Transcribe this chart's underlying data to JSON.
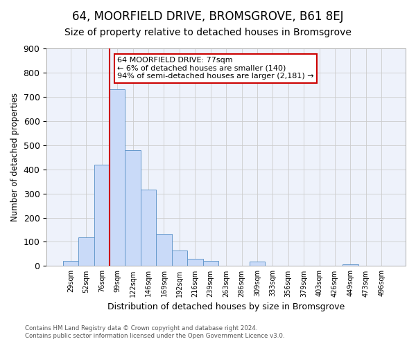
{
  "title": "64, MOORFIELD DRIVE, BROMSGROVE, B61 8EJ",
  "subtitle": "Size of property relative to detached houses in Bromsgrove",
  "xlabel": "Distribution of detached houses by size in Bromsgrove",
  "ylabel": "Number of detached properties",
  "bar_labels": [
    "29sqm",
    "52sqm",
    "76sqm",
    "99sqm",
    "122sqm",
    "146sqm",
    "169sqm",
    "192sqm",
    "216sqm",
    "239sqm",
    "263sqm",
    "286sqm",
    "309sqm",
    "333sqm",
    "356sqm",
    "379sqm",
    "403sqm",
    "426sqm",
    "449sqm",
    "473sqm",
    "496sqm"
  ],
  "bar_values": [
    20,
    120,
    420,
    730,
    478,
    315,
    133,
    65,
    30,
    22,
    0,
    0,
    17,
    0,
    0,
    0,
    0,
    0,
    8,
    0,
    0
  ],
  "bar_color": "#c9daf8",
  "bar_edge_color": "#6699cc",
  "vline_color": "#cc0000",
  "ylim": [
    0,
    900
  ],
  "yticks": [
    0,
    100,
    200,
    300,
    400,
    500,
    600,
    700,
    800,
    900
  ],
  "annotation_title": "64 MOORFIELD DRIVE: 77sqm",
  "annotation_line1": "← 6% of detached houses are smaller (140)",
  "annotation_line2": "94% of semi-detached houses are larger (2,181) →",
  "annotation_box_color": "#ffffff",
  "annotation_box_edge": "#cc0000",
  "footer_line1": "Contains HM Land Registry data © Crown copyright and database right 2024.",
  "footer_line2": "Contains public sector information licensed under the Open Government Licence v3.0.",
  "bg_color": "#ffffff",
  "plot_bg_color": "#eef2fb",
  "grid_color": "#cccccc",
  "title_fontsize": 12,
  "subtitle_fontsize": 10
}
